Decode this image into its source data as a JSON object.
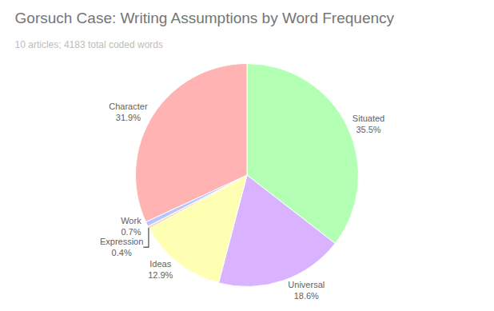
{
  "chart_data": {
    "type": "pie",
    "title": "Gorsuch Case: Writing Assumptions by Word Frequency",
    "subtitle": "10 articles; 4183 total coded words",
    "categories": [
      "Situated",
      "Universal",
      "Ideas",
      "Expression",
      "Work",
      "Character"
    ],
    "values": [
      35.5,
      18.6,
      12.9,
      0.4,
      0.7,
      31.9
    ],
    "value_labels": [
      "35.5%",
      "18.6%",
      "12.9%",
      "0.4%",
      "0.7%",
      "31.9%"
    ],
    "colors": [
      "#b3ffb3",
      "#d9b3ff",
      "#ffffb3",
      "#ffd9b3",
      "#b3c6ff",
      "#ffb3b3"
    ],
    "data_labels": true
  }
}
